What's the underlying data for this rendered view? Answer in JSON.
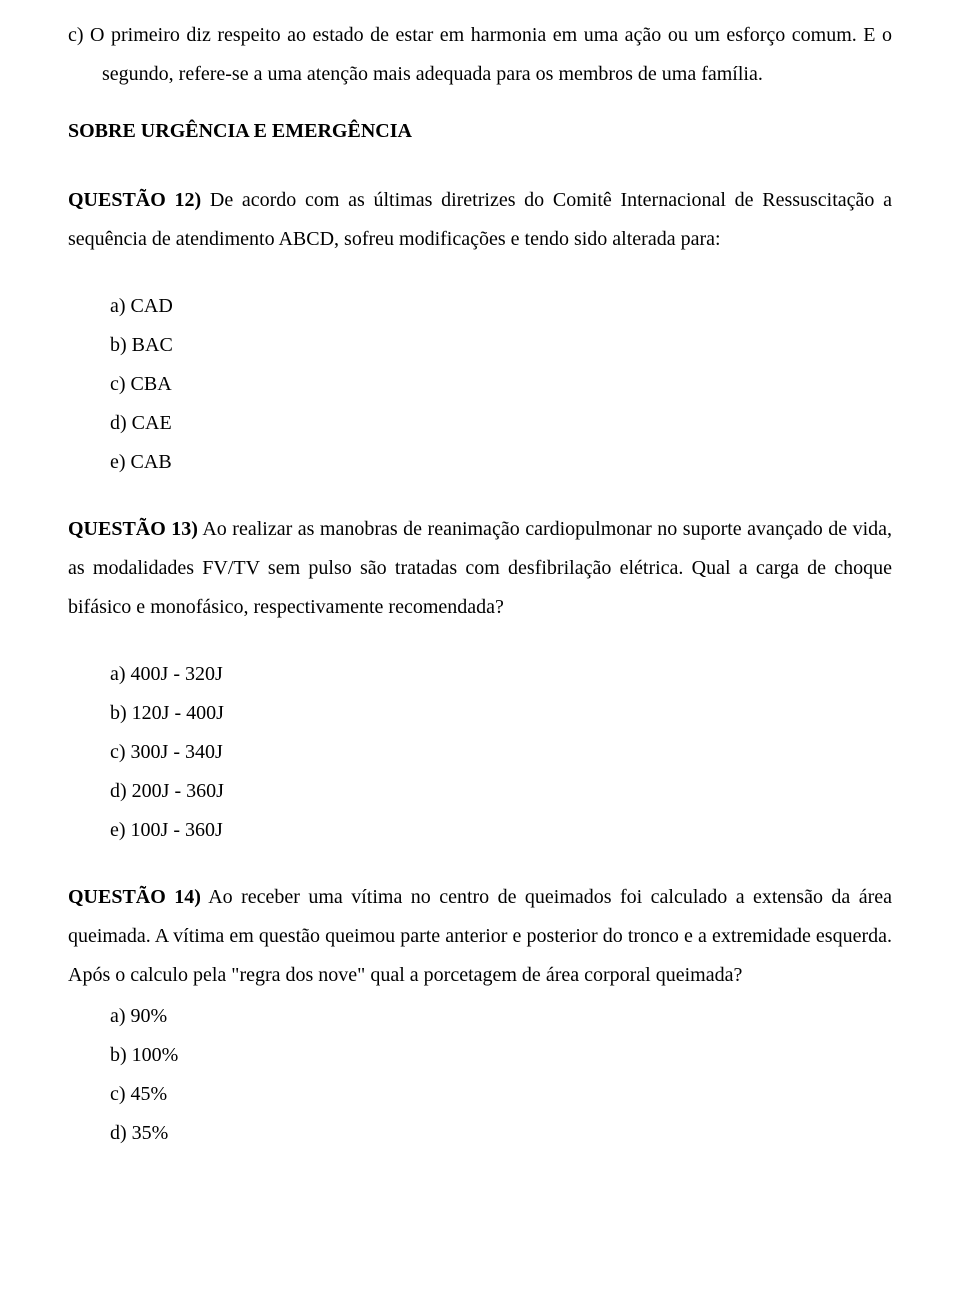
{
  "intro": {
    "option_c": "c)  O primeiro diz respeito ao estado de estar em harmonia em uma ação ou um esforço comum. E o segundo, refere-se a uma atenção mais adequada para os membros de uma família."
  },
  "headings": {
    "section": "SOBRE URGÊNCIA E EMERGÊNCIA"
  },
  "q12": {
    "lead": "QUESTÃO 12)",
    "text": " De acordo com as últimas diretrizes do Comitê Internacional de Ressuscitação a sequência de atendimento ABCD, sofreu modificações e tendo sido alterada para:",
    "opts": {
      "a": "a) CAD",
      "b": "b) BAC",
      "c": "c) CBA",
      "d": "d) CAE",
      "e": "e) CAB"
    }
  },
  "q13": {
    "lead": "QUESTÃO 13)",
    "text": " Ao realizar as manobras de reanimação cardiopulmonar no suporte avançado de vida, as modalidades FV/TV sem pulso são tratadas com desfibrilação elétrica. Qual a carga de choque bifásico e monofásico, respectivamente recomendada?",
    "opts": {
      "a": "a) 400J - 320J",
      "b": "b) 120J - 400J",
      "c": "c) 300J - 340J",
      "d": "d) 200J - 360J",
      "e": "e) 100J - 360J"
    }
  },
  "q14": {
    "lead": "QUESTÃO 14)",
    "text": " Ao receber uma vítima no centro de queimados foi calculado a extensão da área queimada. A vítima em questão queimou parte anterior e posterior do tronco e a extremidade esquerda. Após o calculo pela \"regra dos nove\" qual a porcetagem de área corporal queimada?",
    "opts": {
      "a": "a) 90%",
      "b": "b) 100%",
      "c": "c) 45%",
      "d": "d) 35%"
    }
  }
}
